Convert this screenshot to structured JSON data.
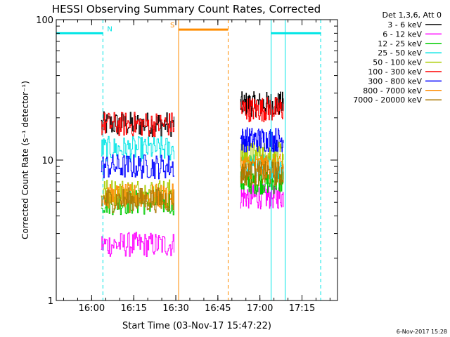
{
  "chart_data": {
    "type": "line",
    "title": "HESSI Observing Summary Count Rates, Corrected",
    "xlabel": "Start Time (03-Nov-17 15:47:22)",
    "ylabel": "Corrected Count Rate (s⁻¹ detector⁻¹)",
    "yscale": "log",
    "ylim": [
      1,
      100
    ],
    "xlim": [
      "15:47:22",
      "17:27:40"
    ],
    "y_ticks": [
      "1",
      "10",
      "100"
    ],
    "x_ticks": [
      "16:00",
      "16:15",
      "16:30",
      "16:45",
      "17:00",
      "17:15"
    ],
    "legend_title": "Det 1,3,6, Att 0",
    "legend_placement": "right",
    "footer_date": "6-Nov-2017 15:28",
    "segments": [
      [
        "16:03:20",
        "16:29:20"
      ],
      [
        "16:53:00",
        "17:08:20"
      ]
    ],
    "series": [
      {
        "name": "3 - 6 keV",
        "color": "#000000",
        "values": [
          18,
          25
        ]
      },
      {
        "name": "6 - 12 keV",
        "color": "#ff00ff",
        "values": [
          2.5,
          5.5
        ]
      },
      {
        "name": "12 - 25 keV",
        "color": "#00cc00",
        "values": [
          5,
          7
        ]
      },
      {
        "name": "25 - 50 keV",
        "color": "#00e5e5",
        "values": [
          12,
          9
        ]
      },
      {
        "name": "50 - 100 keV",
        "color": "#aacc00",
        "values": [
          6,
          11
        ]
      },
      {
        "name": "100 - 300 keV",
        "color": "#ff0000",
        "values": [
          18,
          23
        ]
      },
      {
        "name": "300 - 800 keV",
        "color": "#0000ff",
        "values": [
          9,
          14
        ]
      },
      {
        "name": "800 - 7000 keV",
        "color": "#ff8c00",
        "values": [
          5.5,
          9
        ]
      },
      {
        "name": "7000 - 20000 keV",
        "color": "#aa7700",
        "values": [
          5.2,
          8
        ]
      }
    ],
    "annotations": [
      {
        "label": "N",
        "color": "#00e5e5",
        "bar": [
          "15:47:22",
          "16:04:00"
        ],
        "y": 80
      },
      {
        "label": "S",
        "color": "#ff8c00",
        "bar": [
          "16:31:00",
          "16:48:40"
        ],
        "y": 85
      },
      {
        "label": "",
        "color": "#00e5e5",
        "bar": [
          "17:04:00",
          "17:21:40"
        ],
        "y": 80
      }
    ],
    "vlines": [
      {
        "t": "15:47:22",
        "color": "#00e5e5",
        "dash": false
      },
      {
        "t": "16:04:00",
        "color": "#00e5e5",
        "dash": true
      },
      {
        "t": "16:31:00",
        "color": "#ff8c00",
        "dash": false
      },
      {
        "t": "16:48:40",
        "color": "#ff8c00",
        "dash": true
      },
      {
        "t": "17:04:00",
        "color": "#00e5e5",
        "dash": false
      },
      {
        "t": "17:09:00",
        "color": "#00e5e5",
        "dash": false
      },
      {
        "t": "17:21:40",
        "color": "#00e5e5",
        "dash": true
      }
    ]
  }
}
